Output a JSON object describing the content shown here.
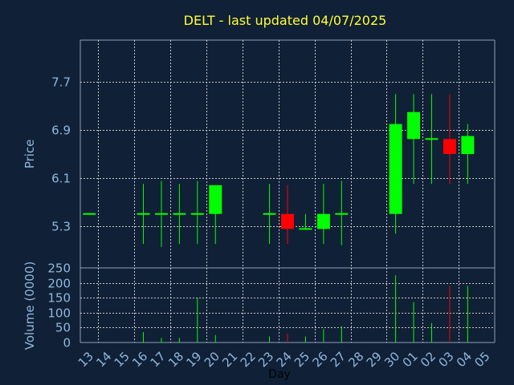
{
  "chart_data": {
    "type": "candlestick",
    "title": "DELT - last updated 04/07/2025",
    "xlabel": "Day",
    "price_ylabel": "Price",
    "volume_ylabel": "Volume (0000)",
    "price_ylim": [
      4.6,
      8.4
    ],
    "price_ticks": [
      "5.3",
      "6.1",
      "6.9",
      "7.7"
    ],
    "volume_ylim": [
      0,
      250
    ],
    "volume_ticks": [
      "0",
      "50",
      "100",
      "150",
      "200",
      "250"
    ],
    "x_labels": [
      "13",
      "14",
      "15",
      "16",
      "17",
      "18",
      "19",
      "20",
      "21",
      "22",
      "23",
      "24",
      "25",
      "26",
      "27",
      "28",
      "29",
      "30",
      "01",
      "02",
      "03",
      "04",
      "05"
    ],
    "grid": true,
    "colors": {
      "background": "#102036",
      "up": "#00ff00",
      "down": "#ff0000",
      "grid": "#c8c8c8",
      "title": "#ffff33",
      "axis_text": "#8fb8de"
    },
    "candles": [
      {
        "day": "13",
        "open": 5.5,
        "high": 5.5,
        "low": 5.5,
        "close": 5.5,
        "volume": 0
      },
      {
        "day": "16",
        "open": 5.5,
        "high": 6.0,
        "low": 5.0,
        "close": 5.5,
        "volume": 35
      },
      {
        "day": "17",
        "open": 5.5,
        "high": 6.05,
        "low": 4.95,
        "close": 5.5,
        "volume": 15
      },
      {
        "day": "18",
        "open": 5.5,
        "high": 6.0,
        "low": 5.0,
        "close": 5.5,
        "volume": 15
      },
      {
        "day": "19",
        "open": 5.5,
        "high": 6.05,
        "low": 5.0,
        "close": 5.5,
        "volume": 150
      },
      {
        "day": "20",
        "open": 5.5,
        "high": 5.98,
        "low": 5.0,
        "close": 5.98,
        "volume": 25
      },
      {
        "day": "23",
        "open": 5.5,
        "high": 6.0,
        "low": 5.0,
        "close": 5.5,
        "volume": 20
      },
      {
        "day": "24",
        "open": 5.5,
        "high": 5.98,
        "low": 5.0,
        "close": 5.25,
        "volume": 30
      },
      {
        "day": "25",
        "open": 5.25,
        "high": 5.5,
        "low": 5.25,
        "close": 5.25,
        "volume": 20
      },
      {
        "day": "26",
        "open": 5.25,
        "high": 6.0,
        "low": 5.0,
        "close": 5.5,
        "volume": 45
      },
      {
        "day": "27",
        "open": 5.5,
        "high": 6.05,
        "low": 4.98,
        "close": 5.5,
        "volume": 55
      },
      {
        "day": "30",
        "open": 5.5,
        "high": 7.5,
        "low": 5.17,
        "close": 7.0,
        "volume": 225
      },
      {
        "day": "01",
        "open": 6.75,
        "high": 7.5,
        "low": 6.0,
        "close": 7.2,
        "volume": 135
      },
      {
        "day": "02",
        "open": 6.75,
        "high": 7.5,
        "low": 6.0,
        "close": 6.75,
        "volume": 65
      },
      {
        "day": "03",
        "open": 6.75,
        "high": 7.5,
        "low": 6.0,
        "close": 6.5,
        "volume": 190
      },
      {
        "day": "04",
        "open": 6.5,
        "high": 7.0,
        "low": 6.0,
        "close": 6.8,
        "volume": 190
      }
    ]
  }
}
